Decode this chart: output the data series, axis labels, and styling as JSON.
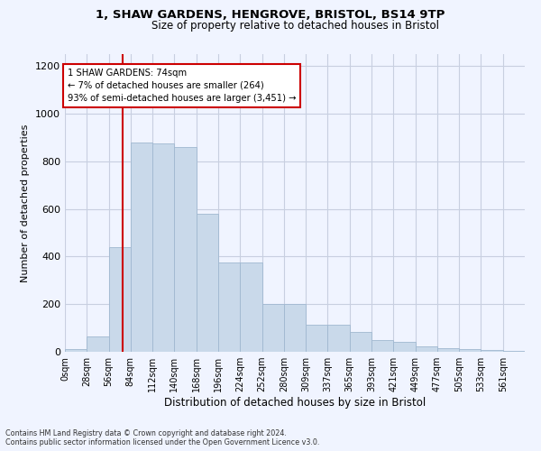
{
  "title": "1, SHAW GARDENS, HENGROVE, BRISTOL, BS14 9TP",
  "subtitle": "Size of property relative to detached houses in Bristol",
  "xlabel": "Distribution of detached houses by size in Bristol",
  "ylabel": "Number of detached properties",
  "bar_color": "#c9d9ea",
  "bar_edge_color": "#a0b8d0",
  "bin_labels": [
    "0sqm",
    "28sqm",
    "56sqm",
    "84sqm",
    "112sqm",
    "140sqm",
    "168sqm",
    "196sqm",
    "224sqm",
    "252sqm",
    "280sqm",
    "309sqm",
    "337sqm",
    "365sqm",
    "393sqm",
    "421sqm",
    "449sqm",
    "477sqm",
    "505sqm",
    "533sqm",
    "561sqm"
  ],
  "bar_values": [
    12,
    65,
    440,
    880,
    875,
    860,
    580,
    375,
    375,
    200,
    200,
    115,
    115,
    85,
    50,
    40,
    22,
    15,
    10,
    8,
    5
  ],
  "ylim": [
    0,
    1250
  ],
  "yticks": [
    0,
    200,
    400,
    600,
    800,
    1000,
    1200
  ],
  "annotation_text": "1 SHAW GARDENS: 74sqm\n← 7% of detached houses are smaller (264)\n93% of semi-detached houses are larger (3,451) →",
  "annotation_box_color": "#ffffff",
  "annotation_box_edge": "#cc0000",
  "footnote1": "Contains HM Land Registry data © Crown copyright and database right 2024.",
  "footnote2": "Contains public sector information licensed under the Open Government Licence v3.0.",
  "background_color": "#f0f4ff",
  "grid_color": "#c8cfe0",
  "vline_color": "#cc0000",
  "num_bins": 21,
  "bin_width": 28,
  "vline_x": 74
}
